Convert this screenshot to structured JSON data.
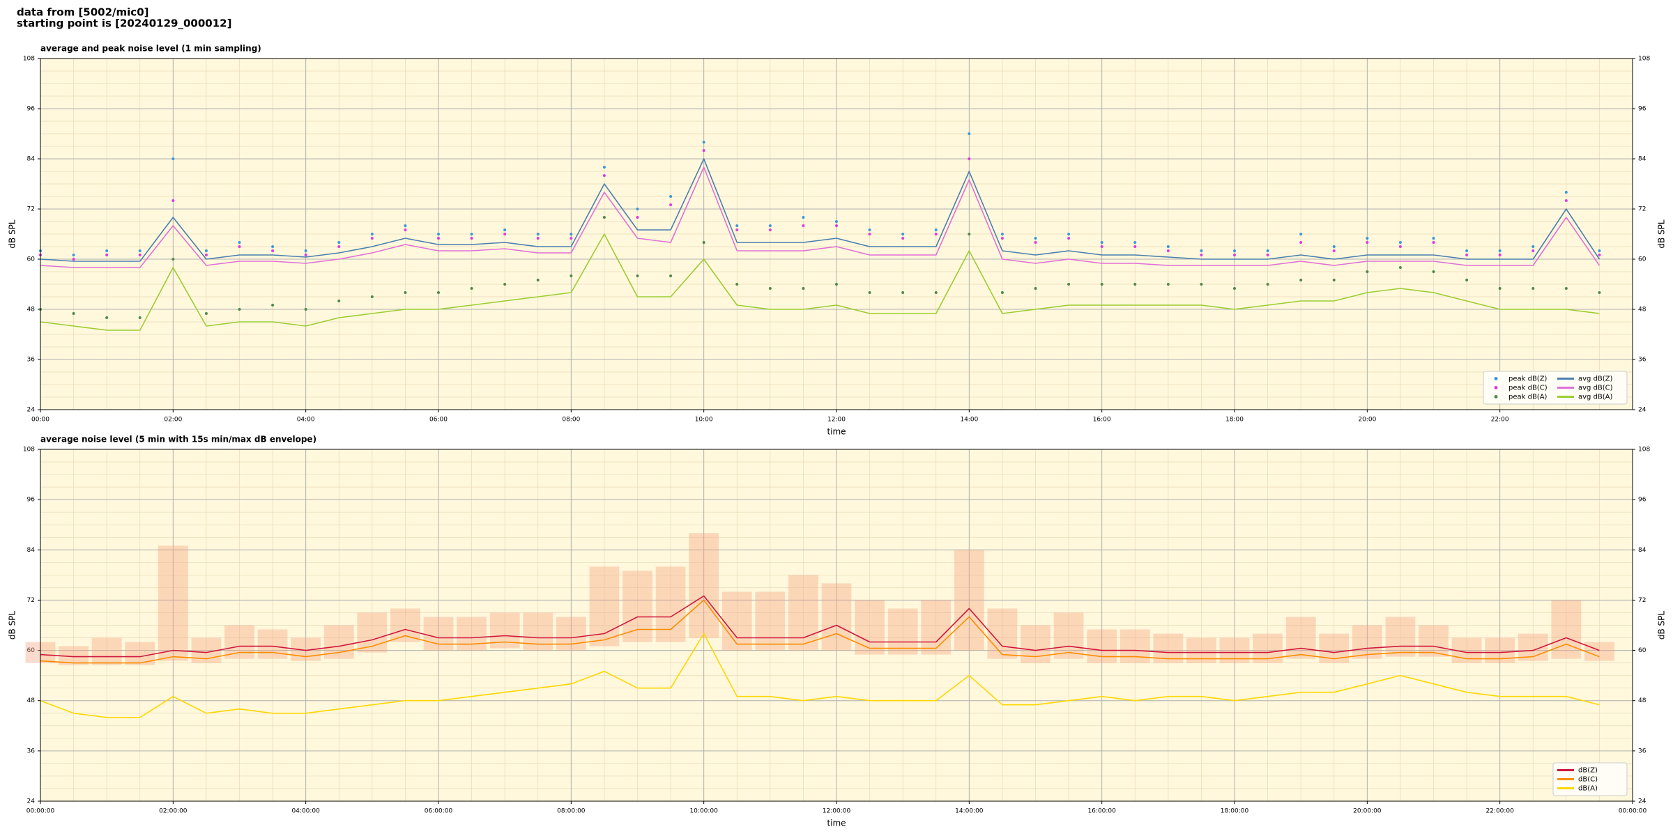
{
  "header": {
    "source": "data from [5002/mic0]",
    "start": "starting point is [20240129_000012]"
  },
  "chart_data": [
    {
      "type": "line",
      "title": "average and peak noise level (1 min sampling)",
      "xlabel": "time",
      "ylabel": "dB SPL",
      "y2label": "dB SPL",
      "x": [
        0,
        0.5,
        1,
        1.5,
        2,
        2.5,
        3,
        3.5,
        4,
        4.5,
        5,
        5.5,
        6,
        6.5,
        7,
        7.5,
        8,
        8.5,
        9,
        9.5,
        10,
        10.5,
        11,
        11.5,
        12,
        12.5,
        13,
        13.5,
        14,
        14.5,
        15,
        15.5,
        16,
        16.5,
        17,
        17.5,
        18,
        18.5,
        19,
        19.5,
        20,
        20.5,
        21,
        21.5,
        22,
        22.5,
        23,
        23.5
      ],
      "xlim": [
        0,
        24
      ],
      "xticks": [
        {
          "value": 0,
          "label": "00:00"
        },
        {
          "value": 2,
          "label": "02:00"
        },
        {
          "value": 4,
          "label": "04:00"
        },
        {
          "value": 6,
          "label": "06:00"
        },
        {
          "value": 8,
          "label": "08:00"
        },
        {
          "value": 10,
          "label": "10:00"
        },
        {
          "value": 12,
          "label": "12:00"
        },
        {
          "value": 14,
          "label": "14:00"
        },
        {
          "value": 16,
          "label": "16:00"
        },
        {
          "value": 18,
          "label": "18:00"
        },
        {
          "value": 20,
          "label": "20:00"
        },
        {
          "value": 22,
          "label": "22:00"
        }
      ],
      "ylim": [
        24,
        108
      ],
      "yticks": [
        24,
        36,
        48,
        60,
        72,
        84,
        96,
        108
      ],
      "y2lim": [
        24,
        108
      ],
      "y2ticks": [
        24,
        36,
        48,
        60,
        72,
        84,
        96,
        108
      ],
      "grid": true,
      "minor_grid": true,
      "background": "#fff8dc",
      "legend": {
        "loc": "lower right",
        "ncol": 2
      },
      "series": [
        {
          "name": "peak dB(Z)",
          "kind": "scatter",
          "color": "#3a9ad9",
          "values": [
            62,
            61,
            62,
            62,
            84,
            62,
            64,
            63,
            62,
            64,
            66,
            68,
            66,
            66,
            67,
            66,
            66,
            82,
            72,
            75,
            88,
            68,
            68,
            70,
            69,
            67,
            66,
            67,
            90,
            66,
            65,
            66,
            64,
            64,
            63,
            62,
            62,
            62,
            66,
            63,
            65,
            64,
            65,
            62,
            62,
            63,
            76,
            62
          ]
        },
        {
          "name": "peak dB(C)",
          "kind": "scatter",
          "color": "#e03ce0",
          "values": [
            61,
            60,
            61,
            61,
            74,
            61,
            63,
            62,
            61,
            63,
            65,
            67,
            65,
            65,
            66,
            65,
            65,
            80,
            70,
            73,
            86,
            67,
            67,
            68,
            68,
            66,
            65,
            66,
            84,
            65,
            64,
            65,
            63,
            63,
            62,
            61,
            61,
            61,
            64,
            62,
            64,
            63,
            64,
            61,
            61,
            62,
            74,
            61
          ]
        },
        {
          "name": "peak dB(A)",
          "kind": "scatter",
          "color": "#4f8a4a",
          "values": [
            48,
            47,
            46,
            46,
            60,
            47,
            48,
            49,
            48,
            50,
            51,
            52,
            52,
            53,
            54,
            55,
            56,
            70,
            56,
            56,
            64,
            54,
            53,
            53,
            54,
            52,
            52,
            52,
            66,
            52,
            53,
            54,
            54,
            54,
            54,
            54,
            53,
            54,
            55,
            55,
            57,
            58,
            57,
            55,
            53,
            53,
            53,
            52
          ]
        },
        {
          "name": "avg dB(Z)",
          "kind": "line",
          "color": "#4a7fb0",
          "values": [
            60,
            59.5,
            59.5,
            59.5,
            70,
            60,
            61,
            61,
            60.5,
            61.5,
            63,
            65,
            63.5,
            63.5,
            64,
            63,
            63,
            78,
            67,
            67,
            84,
            64,
            64,
            64,
            65,
            63,
            63,
            63,
            81,
            62,
            61,
            62,
            61,
            61,
            60.5,
            60,
            60,
            60,
            61,
            60,
            61,
            61,
            61,
            60,
            60,
            60,
            72,
            60
          ]
        },
        {
          "name": "avg dB(C)",
          "kind": "line",
          "color": "#e070d8",
          "values": [
            58.5,
            58,
            58,
            58,
            68,
            58.5,
            59.5,
            59.5,
            59,
            60,
            61.5,
            63.5,
            62,
            62,
            62.5,
            61.5,
            61.5,
            76,
            65,
            64,
            82,
            62,
            62,
            62,
            63,
            61,
            61,
            61,
            79,
            60,
            59,
            60,
            59,
            59,
            58.5,
            58.5,
            58.5,
            58.5,
            59.5,
            58.5,
            59.5,
            59.5,
            59.5,
            58.5,
            58.5,
            58.5,
            70,
            58.5
          ]
        },
        {
          "name": "avg dB(A)",
          "kind": "line",
          "color": "#9acd32",
          "values": [
            45,
            44,
            43,
            43,
            58,
            44,
            45,
            45,
            44,
            46,
            47,
            48,
            48,
            49,
            50,
            51,
            52,
            66,
            51,
            51,
            60,
            49,
            48,
            48,
            49,
            47,
            47,
            47,
            62,
            47,
            48,
            49,
            49,
            49,
            49,
            49,
            48,
            49,
            50,
            50,
            52,
            53,
            52,
            50,
            48,
            48,
            48,
            47
          ]
        }
      ]
    },
    {
      "type": "line",
      "title": "average noise level (5 min with 15s min/max dB envelope)",
      "xlabel": "time",
      "ylabel": "dB SPL",
      "y2label": "dB SPL",
      "x": [
        0,
        0.5,
        1,
        1.5,
        2,
        2.5,
        3,
        3.5,
        4,
        4.5,
        5,
        5.5,
        6,
        6.5,
        7,
        7.5,
        8,
        8.5,
        9,
        9.5,
        10,
        10.5,
        11,
        11.5,
        12,
        12.5,
        13,
        13.5,
        14,
        14.5,
        15,
        15.5,
        16,
        16.5,
        17,
        17.5,
        18,
        18.5,
        19,
        19.5,
        20,
        20.5,
        21,
        21.5,
        22,
        22.5,
        23,
        23.5
      ],
      "xlim": [
        0,
        24
      ],
      "xticks": [
        {
          "value": 0,
          "label": "00:00:00"
        },
        {
          "value": 2,
          "label": "02:00:00"
        },
        {
          "value": 4,
          "label": "04:00:00"
        },
        {
          "value": 6,
          "label": "06:00:00"
        },
        {
          "value": 8,
          "label": "08:00:00"
        },
        {
          "value": 10,
          "label": "10:00:00"
        },
        {
          "value": 12,
          "label": "12:00:00"
        },
        {
          "value": 14,
          "label": "14:00:00"
        },
        {
          "value": 16,
          "label": "16:00:00"
        },
        {
          "value": 18,
          "label": "18:00:00"
        },
        {
          "value": 20,
          "label": "20:00:00"
        },
        {
          "value": 22,
          "label": "22:00:00"
        },
        {
          "value": 24,
          "label": "00:00:00"
        }
      ],
      "ylim": [
        24,
        108
      ],
      "yticks": [
        24,
        36,
        48,
        60,
        72,
        84,
        96,
        108
      ],
      "y2lim": [
        24,
        108
      ],
      "y2ticks": [
        24,
        36,
        48,
        60,
        72,
        84,
        96,
        108
      ],
      "grid": true,
      "minor_grid": true,
      "background": "#fff8dc",
      "legend": {
        "loc": "lower right",
        "ncol": 1
      },
      "envelope": {
        "color": "#f4a582",
        "upper": [
          62,
          61,
          63,
          62,
          85,
          63,
          66,
          65,
          63,
          66,
          69,
          70,
          68,
          68,
          69,
          69,
          68,
          80,
          79,
          80,
          88,
          74,
          74,
          78,
          76,
          72,
          70,
          72,
          84,
          70,
          66,
          69,
          65,
          65,
          64,
          63,
          63,
          64,
          68,
          64,
          66,
          68,
          66,
          63,
          63,
          64,
          72,
          62
        ],
        "lower": [
          57,
          56.5,
          56.5,
          56.5,
          57.5,
          57,
          58,
          58,
          57.5,
          58,
          59.5,
          62,
          60,
          60,
          60.5,
          60,
          60,
          61,
          62,
          62,
          63,
          60,
          60,
          60,
          60,
          59,
          59,
          59,
          60,
          58,
          57,
          58,
          57,
          57,
          57,
          57,
          57,
          57,
          58,
          57,
          58,
          58.5,
          58.5,
          57,
          57,
          57.5,
          58,
          57.5
        ]
      },
      "series": [
        {
          "name": "dB(Z)",
          "kind": "line",
          "color": "#d0173c",
          "values": [
            59,
            58.5,
            58.5,
            58.5,
            60,
            59.5,
            61,
            61,
            60,
            61,
            62.5,
            65,
            63,
            63,
            63.5,
            63,
            63,
            64,
            68,
            68,
            73,
            63,
            63,
            63,
            66,
            62,
            62,
            62,
            70,
            61,
            60,
            61,
            60,
            60,
            59.5,
            59.5,
            59.5,
            59.5,
            60.5,
            59.5,
            60.5,
            61,
            61,
            59.5,
            59.5,
            60,
            63,
            60
          ]
        },
        {
          "name": "dB(C)",
          "kind": "line",
          "color": "#ff8c00",
          "values": [
            57.5,
            57,
            57,
            57,
            58.5,
            58,
            59.5,
            59.5,
            58.5,
            59.5,
            61,
            63.5,
            61.5,
            61.5,
            62,
            61.5,
            61.5,
            62.5,
            65,
            65,
            72,
            61.5,
            61.5,
            61.5,
            64,
            60.5,
            60.5,
            60.5,
            68,
            59,
            58.5,
            59.5,
            58.5,
            58.5,
            58,
            58,
            58,
            58,
            59,
            58,
            59,
            59.5,
            59.5,
            58,
            58,
            58.5,
            61.5,
            58.5
          ]
        },
        {
          "name": "dB(A)",
          "kind": "line",
          "color": "#ffd700",
          "values": [
            48,
            45,
            44,
            44,
            49,
            45,
            46,
            45,
            45,
            46,
            47,
            48,
            48,
            49,
            50,
            51,
            52,
            55,
            51,
            51,
            64,
            49,
            49,
            48,
            49,
            48,
            48,
            48,
            54,
            47,
            47,
            48,
            49,
            48,
            49,
            49,
            48,
            49,
            50,
            50,
            52,
            54,
            52,
            50,
            49,
            49,
            49,
            47
          ]
        }
      ]
    }
  ]
}
